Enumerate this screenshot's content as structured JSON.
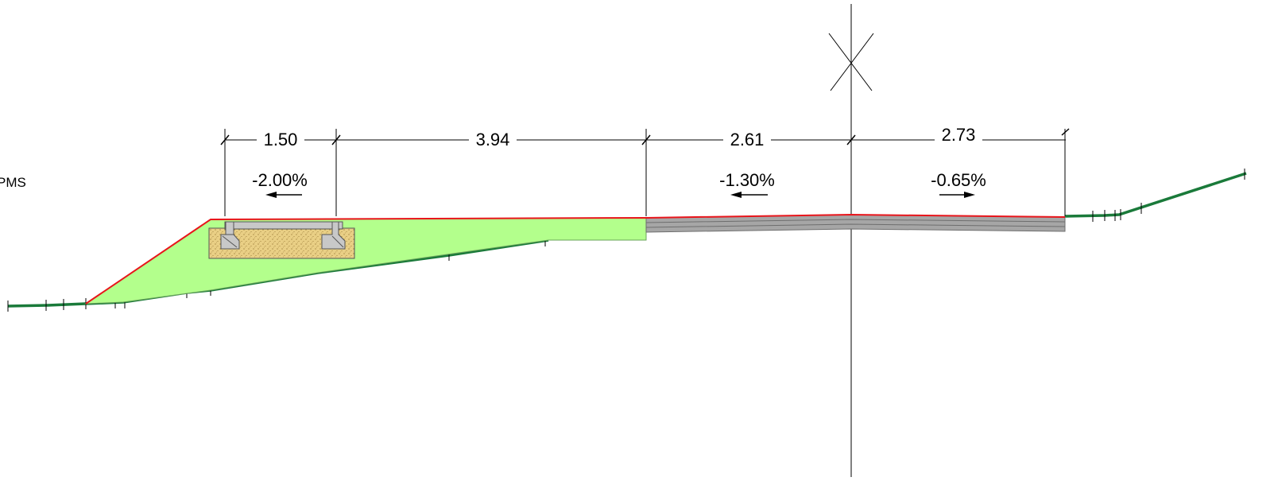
{
  "drawing": {
    "side_label": "PMS",
    "dimensions": [
      {
        "id": "dim-1",
        "text": "1.50"
      },
      {
        "id": "dim-2",
        "text": "3.94"
      },
      {
        "id": "dim-3",
        "text": "2.61"
      },
      {
        "id": "dim-4",
        "text": "2.73"
      }
    ],
    "slopes": [
      {
        "id": "slope-1",
        "text": "-2.00%",
        "direction": "left"
      },
      {
        "id": "slope-2",
        "text": "-1.30%",
        "direction": "left"
      },
      {
        "id": "slope-3",
        "text": "-0.65%",
        "direction": "right"
      }
    ]
  },
  "colors": {
    "ground_line": "#1a7a3a",
    "finished_surface": "#e8151b",
    "fill_material": "#b3ff8c",
    "fill_outline": "#6aa35a",
    "pavement": "#a6a6a6",
    "pavement_dark": "#6e6e6e",
    "base_material": "#e9cf85",
    "concrete": "#c8c8c8",
    "lines": "#000000"
  }
}
